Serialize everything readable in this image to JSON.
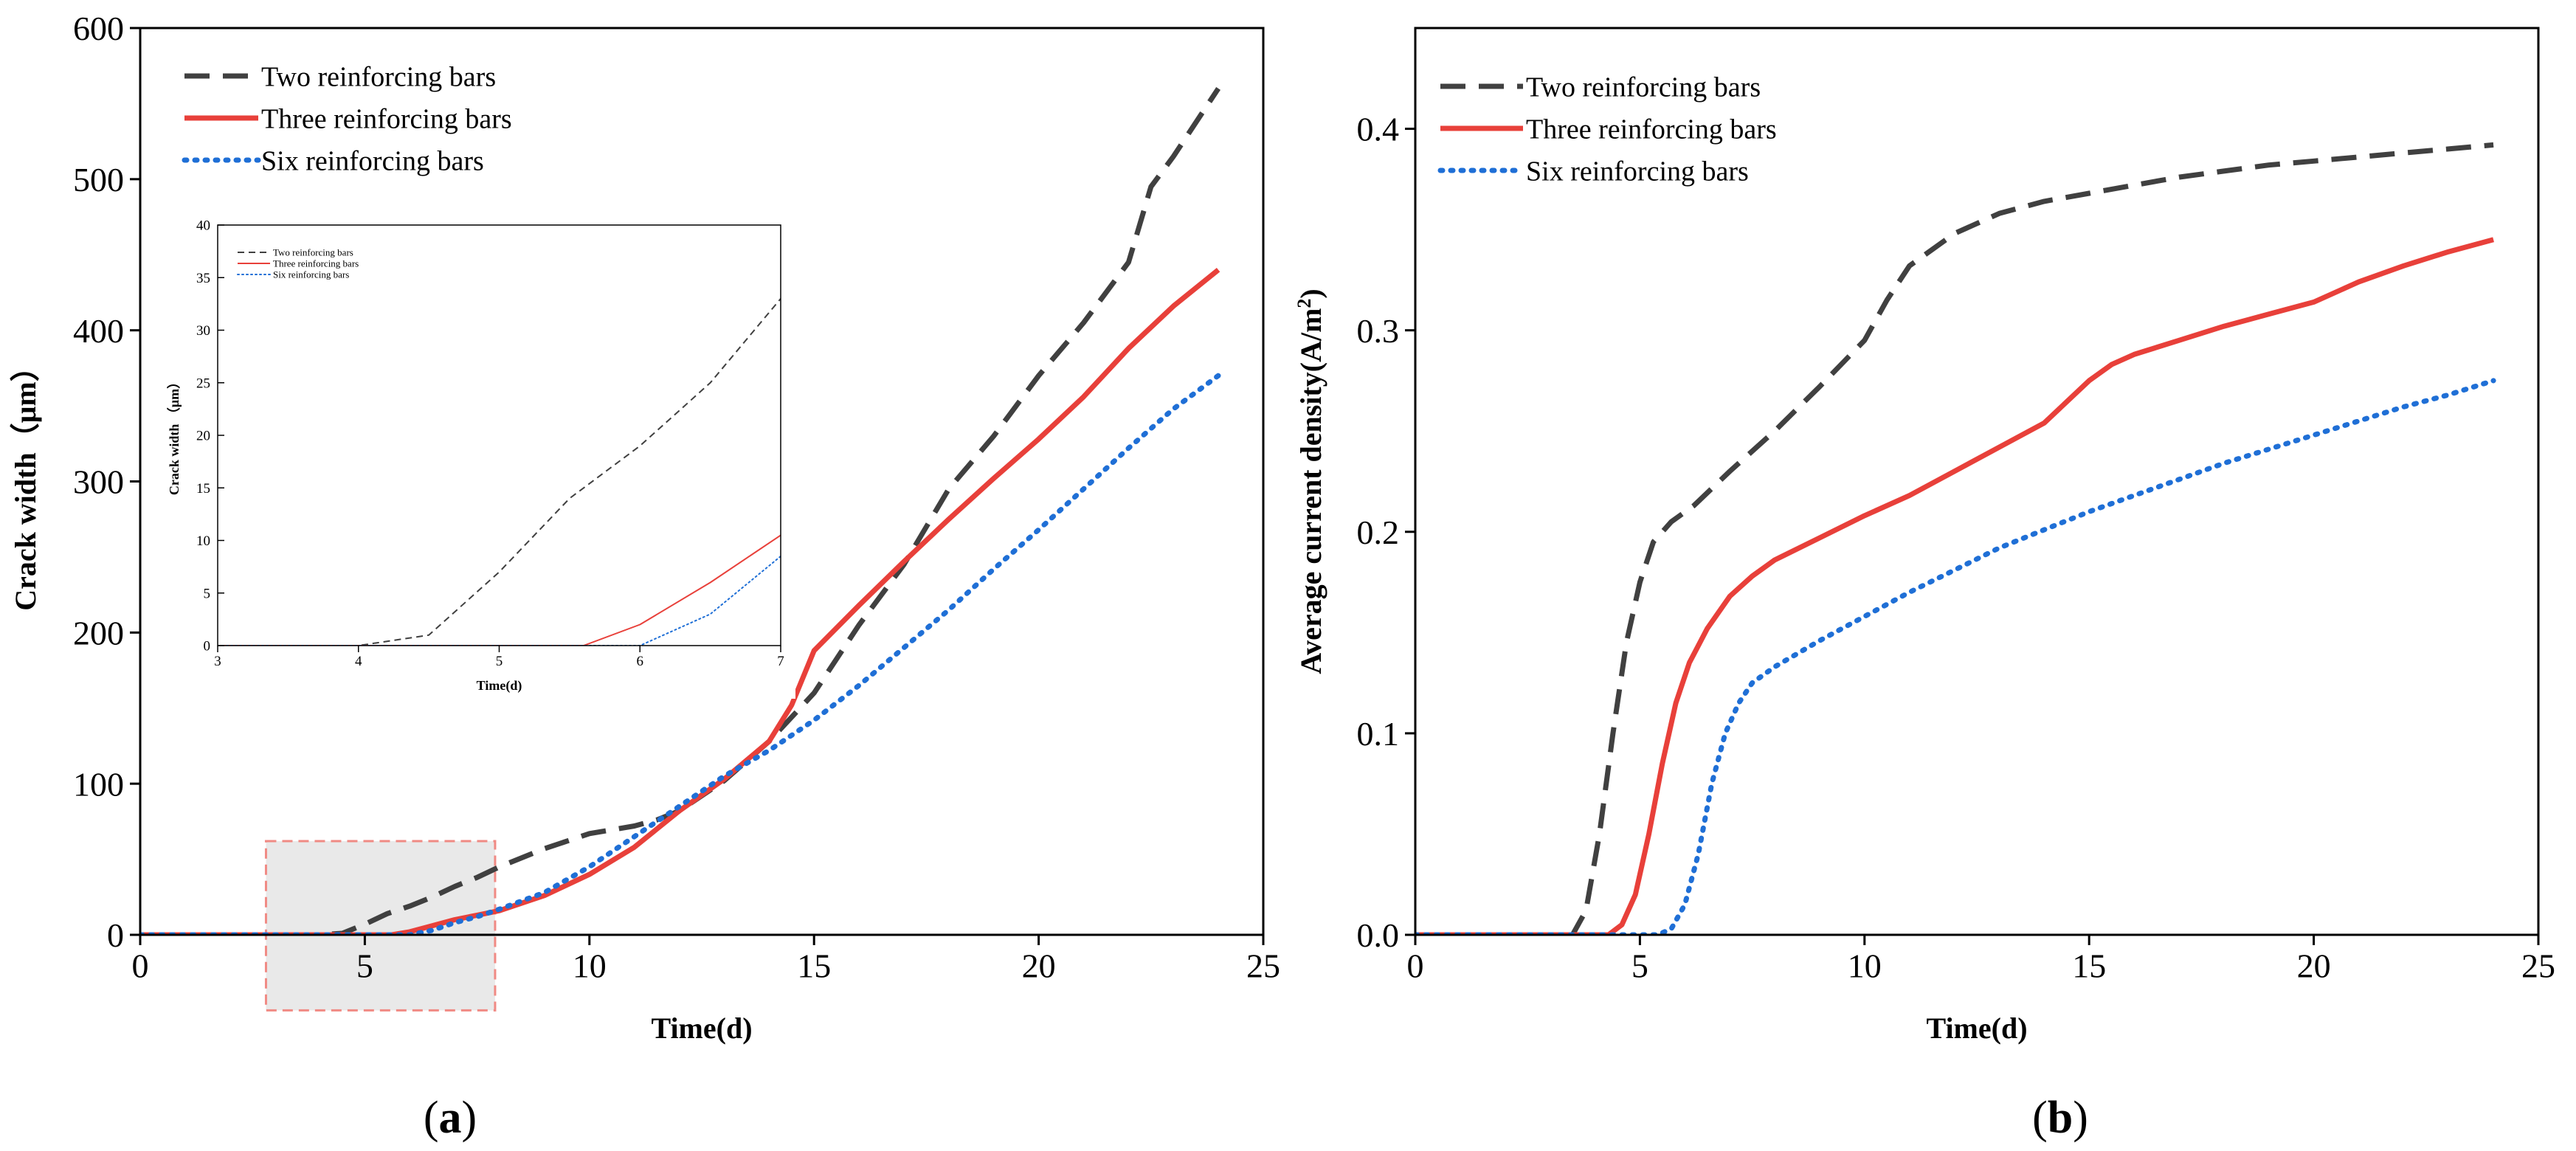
{
  "chart_data": [
    {
      "id": "a",
      "panel_label_prefix": "(",
      "panel_label_letter": "a",
      "panel_label_suffix": ")",
      "type": "line",
      "xlabel": "Time(d)",
      "ylabel": "Crack width（μm）",
      "xlim": [
        0,
        25
      ],
      "ylim": [
        0,
        600
      ],
      "xticks": [
        "0",
        "5",
        "10",
        "15",
        "20",
        "25"
      ],
      "yticks": [
        "0",
        "100",
        "200",
        "300",
        "400",
        "500",
        "600"
      ],
      "legend_position": "top-left",
      "highlight_box": {
        "x_range": [
          2.8,
          7.9
        ],
        "y_range": [
          -50,
          62
        ]
      },
      "series": [
        {
          "name": "Two reinforcing bars",
          "style": "dashed",
          "color": "#404040",
          "x": [
            0,
            4,
            4.5,
            5,
            5.5,
            6,
            6.5,
            7,
            7.5,
            8,
            9,
            10,
            11,
            11.5,
            12,
            13,
            14,
            15,
            16,
            17,
            18,
            19,
            20,
            21,
            22,
            22.5,
            23,
            24
          ],
          "y": [
            0,
            0,
            1,
            7,
            14,
            19,
            25,
            32,
            38,
            45,
            57,
            67,
            72,
            76,
            82,
            102,
            128,
            160,
            205,
            245,
            295,
            330,
            370,
            405,
            445,
            495,
            515,
            560
          ]
        },
        {
          "name": "Three reinforcing bars",
          "style": "solid",
          "color": "#e8403a",
          "x": [
            0,
            5.6,
            6,
            6.5,
            7,
            7.5,
            8,
            9,
            10,
            11,
            12,
            13,
            14,
            14.5,
            15,
            16,
            17,
            18,
            19,
            20,
            21,
            22,
            23,
            24
          ],
          "y": [
            0,
            0,
            2,
            6,
            10,
            13,
            16,
            26,
            40,
            58,
            82,
            103,
            128,
            152,
            188,
            218,
            247,
            275,
            302,
            328,
            356,
            388,
            416,
            440
          ]
        },
        {
          "name": "Six reinforcing bars",
          "style": "dotted",
          "color": "#1f6fd6",
          "x": [
            0,
            6,
            6.5,
            7,
            7.5,
            8,
            9,
            10,
            11,
            12,
            13,
            14,
            15,
            16,
            17,
            18,
            19,
            20,
            21,
            22,
            23,
            24
          ],
          "y": [
            0,
            0,
            3,
            8,
            12,
            17,
            28,
            45,
            65,
            85,
            105,
            122,
            142,
            165,
            190,
            215,
            242,
            268,
            295,
            322,
            348,
            370
          ]
        }
      ]
    },
    {
      "id": "a-inset",
      "type": "line",
      "xlabel": "Time(d)",
      "ylabel": "Crack width （μm）",
      "xlim": [
        3,
        7
      ],
      "ylim": [
        0,
        40
      ],
      "xticks": [
        "3",
        "4",
        "5",
        "6",
        "7"
      ],
      "yticks": [
        "0",
        "5",
        "10",
        "15",
        "20",
        "25",
        "30",
        "35",
        "40"
      ],
      "legend_position": "top-left",
      "series": [
        {
          "name": "Two reinforcing bars",
          "style": "dashed",
          "color": "#404040",
          "x": [
            3,
            4,
            4.5,
            5,
            5.5,
            6,
            6.5,
            7
          ],
          "y": [
            0,
            0,
            1,
            7,
            14,
            19,
            25,
            33
          ]
        },
        {
          "name": "Three reinforcing bars",
          "style": "solid",
          "color": "#e8403a",
          "x": [
            3,
            5.6,
            6,
            6.5,
            7
          ],
          "y": [
            0,
            0,
            2,
            6,
            10.5
          ]
        },
        {
          "name": "Six reinforcing bars",
          "style": "dotted",
          "color": "#1f6fd6",
          "x": [
            3,
            6,
            6.5,
            7
          ],
          "y": [
            0,
            0,
            3,
            8.5
          ]
        }
      ]
    },
    {
      "id": "b",
      "panel_label_prefix": "(",
      "panel_label_letter": "b",
      "panel_label_suffix": ")",
      "type": "line",
      "xlabel": "Time(d)",
      "ylabel": "Average current density(A/m",
      "ylabel_sup": "2",
      "ylabel_end": ")",
      "xlim": [
        0,
        25
      ],
      "ylim": [
        0,
        0.45
      ],
      "xticks": [
        "0",
        "5",
        "10",
        "15",
        "20",
        "25"
      ],
      "yticks": [
        "0.0",
        "0.1",
        "0.2",
        "0.3",
        "0.4"
      ],
      "legend_position": "top-left",
      "series": [
        {
          "name": "Two reinforcing bars",
          "style": "dashed",
          "color": "#404040",
          "x": [
            0,
            3.5,
            3.8,
            4.1,
            4.4,
            4.7,
            5.0,
            5.3,
            5.7,
            6.2,
            7,
            8,
            9,
            10,
            10.5,
            11,
            12,
            13,
            14,
            15,
            16,
            17,
            18,
            19,
            20,
            21,
            22,
            23,
            24
          ],
          "y": [
            0,
            0,
            0.012,
            0.05,
            0.1,
            0.145,
            0.175,
            0.195,
            0.205,
            0.213,
            0.23,
            0.25,
            0.272,
            0.295,
            0.315,
            0.332,
            0.348,
            0.358,
            0.364,
            0.368,
            0.372,
            0.376,
            0.379,
            0.382,
            0.384,
            0.386,
            0.388,
            0.39,
            0.392
          ]
        },
        {
          "name": "Three reinforcing bars",
          "style": "solid",
          "color": "#e8403a",
          "x": [
            0,
            4.3,
            4.6,
            4.9,
            5.2,
            5.5,
            5.8,
            6.1,
            6.5,
            7,
            7.5,
            8,
            9,
            10,
            11,
            12,
            13,
            14,
            15,
            15.5,
            16,
            17,
            18,
            19,
            20,
            21,
            22,
            23,
            24
          ],
          "y": [
            0,
            0,
            0.005,
            0.02,
            0.05,
            0.085,
            0.115,
            0.135,
            0.152,
            0.168,
            0.178,
            0.186,
            0.197,
            0.208,
            0.218,
            0.23,
            0.242,
            0.254,
            0.275,
            0.283,
            0.288,
            0.295,
            0.302,
            0.308,
            0.314,
            0.324,
            0.332,
            0.339,
            0.345
          ]
        },
        {
          "name": "Six reinforcing bars",
          "style": "dotted",
          "color": "#1f6fd6",
          "x": [
            0,
            5.4,
            5.7,
            6.0,
            6.3,
            6.6,
            6.9,
            7.2,
            7.5,
            8,
            9,
            10,
            11,
            12,
            13,
            14,
            15,
            16,
            17,
            18,
            19,
            20,
            21,
            22,
            23,
            24
          ],
          "y": [
            0,
            0,
            0.003,
            0.015,
            0.04,
            0.075,
            0.1,
            0.115,
            0.125,
            0.133,
            0.146,
            0.158,
            0.17,
            0.181,
            0.192,
            0.201,
            0.21,
            0.218,
            0.226,
            0.234,
            0.241,
            0.248,
            0.255,
            0.262,
            0.268,
            0.275
          ]
        }
      ]
    }
  ]
}
